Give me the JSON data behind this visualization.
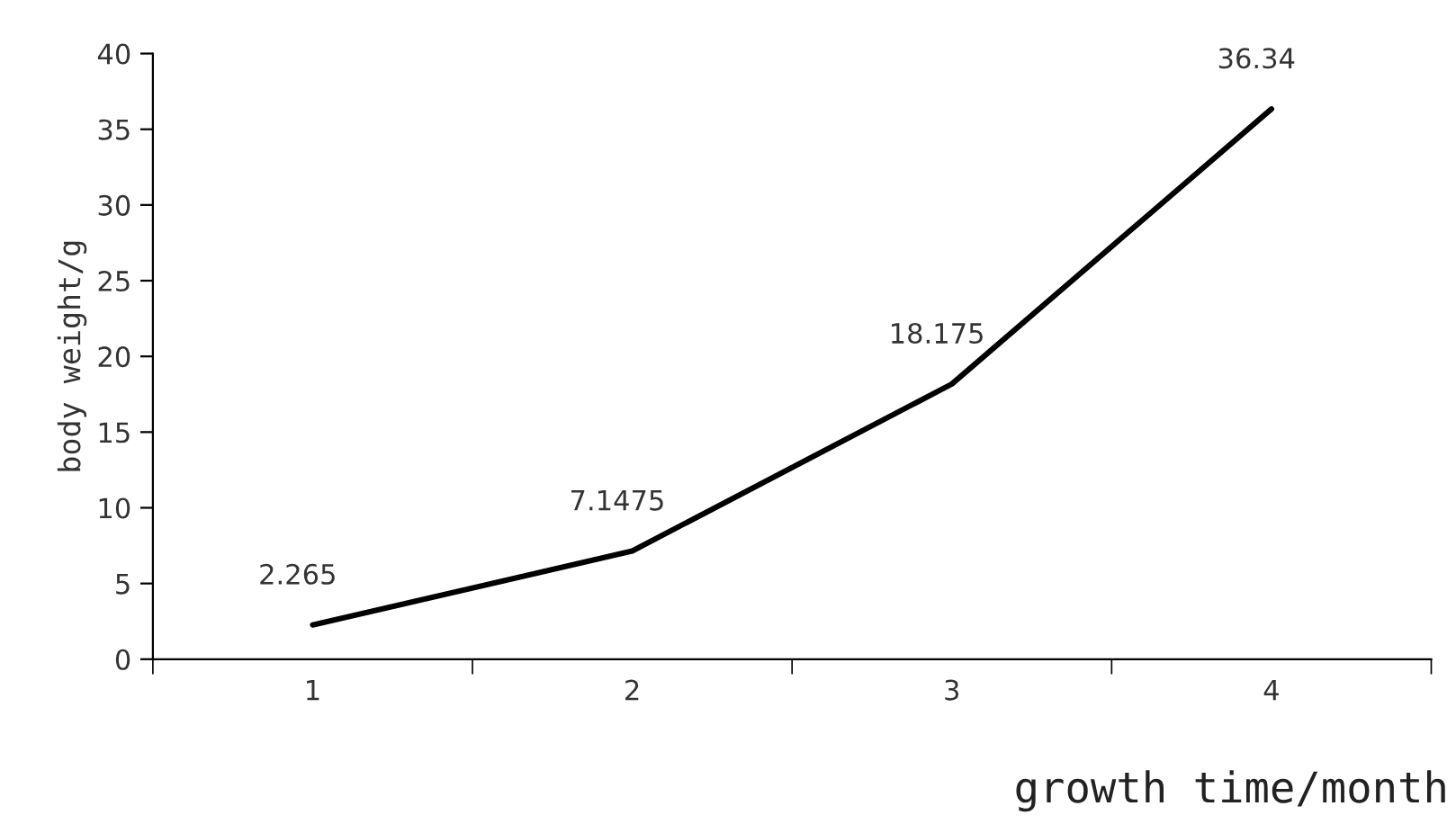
{
  "chart_data": {
    "type": "line",
    "xlabel": "growth time/month",
    "ylabel": "body weight/g",
    "categories": [
      "1",
      "2",
      "3",
      "4"
    ],
    "series": [
      {
        "color": "#000000",
        "values": [
          2.265,
          7.1475,
          18.175,
          36.34
        ]
      }
    ],
    "ylim": [
      0,
      40
    ],
    "yticks": [
      0,
      5,
      10,
      15,
      20,
      25,
      30,
      35,
      40
    ],
    "data_labels": true,
    "grid": false,
    "legend": false,
    "marker": "none",
    "line_style": "solid"
  }
}
